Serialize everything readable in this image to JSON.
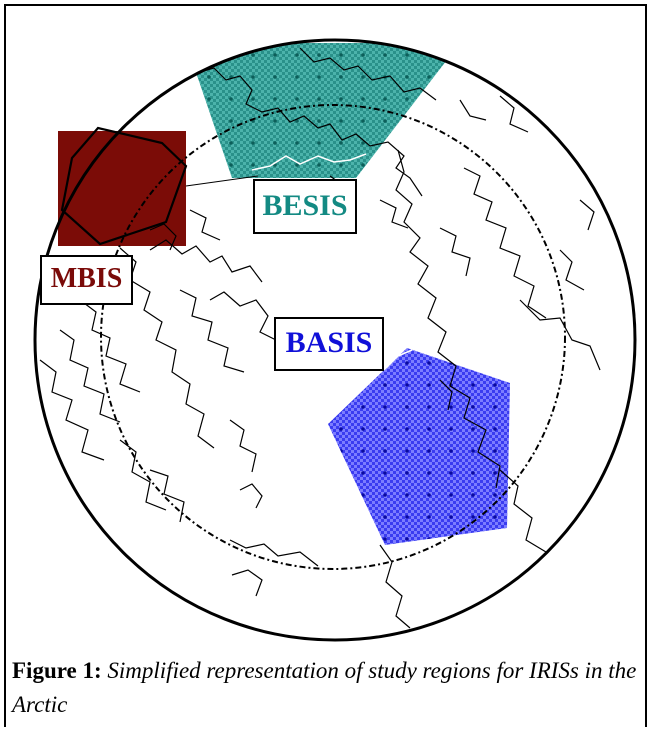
{
  "figure": {
    "caption_lead": "Figure 1:",
    "caption_text": "Simplified representation of study regions for IRISs in the Arctic"
  },
  "regions": [
    {
      "id": "besis",
      "label": "BESIS",
      "color": "#138a83"
    },
    {
      "id": "mbis",
      "label": "MBIS",
      "color": "#7a0a08"
    },
    {
      "id": "basis",
      "label": "BASIS",
      "color": "#1010d8"
    }
  ],
  "colors": {
    "besis_fill": "#3aa8a0",
    "besis_dot": "#0c5f5a",
    "mbis_fill": "#7b0c07",
    "basis_fill": "#5b5cff",
    "basis_dot": "#0a0aa0",
    "outline": "#000000"
  }
}
